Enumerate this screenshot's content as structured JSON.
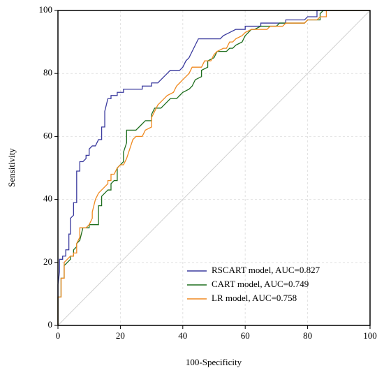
{
  "chart_data": {
    "type": "line",
    "x_label": "100-Specificity",
    "y_label": "Sensitivity",
    "xlim": [
      0,
      100
    ],
    "ylim": [
      0,
      100
    ],
    "xticks": [
      0,
      20,
      40,
      60,
      80,
      100
    ],
    "yticks": [
      0,
      20,
      40,
      60,
      80,
      100
    ],
    "grid": true,
    "legend": "lower right",
    "series": [
      {
        "name": "RSCART model, AUC=0.827",
        "color": "#3a3a9e",
        "x": [
          0,
          0,
          0.5,
          0.5,
          1.5,
          1.5,
          2.5,
          2.5,
          3.5,
          3.5,
          4,
          4,
          5,
          5,
          6,
          6,
          7,
          7,
          8,
          9,
          9,
          10,
          10,
          11,
          12,
          13,
          14,
          14,
          15,
          15,
          16,
          17,
          17,
          19,
          19,
          21,
          21,
          27,
          27,
          30,
          30,
          32,
          33,
          35,
          36,
          39,
          40,
          41,
          42,
          43,
          44,
          45,
          52,
          53,
          55,
          57,
          60,
          60,
          65,
          65,
          73,
          73,
          79,
          80,
          83,
          83,
          100
        ],
        "values": [
          0,
          13,
          17,
          21,
          21,
          22,
          22,
          24,
          24,
          29,
          29,
          34,
          35,
          39,
          39,
          49,
          49,
          52,
          52,
          53,
          54,
          54,
          56,
          57,
          57,
          59,
          59,
          63,
          63,
          68,
          72,
          72,
          73,
          73,
          74,
          74,
          75,
          75,
          76,
          76,
          77,
          77,
          78,
          80,
          81,
          81,
          82,
          84,
          85,
          87,
          89,
          91,
          91,
          92,
          93,
          94,
          94,
          95,
          95,
          96,
          96,
          97,
          97,
          98,
          98,
          100,
          100
        ]
      },
      {
        "name": "CART model, AUC=0.749",
        "color": "#1e6e1e",
        "x": [
          0,
          0,
          1,
          1,
          2,
          2,
          3,
          4,
          4,
          5,
          5,
          6,
          6,
          7,
          8,
          10,
          10,
          13,
          13,
          14,
          14,
          15,
          16,
          17,
          17,
          18,
          19,
          19,
          20,
          21,
          21,
          22,
          22,
          24,
          25,
          26,
          27,
          28,
          30,
          30,
          31,
          33,
          34,
          35,
          36,
          38,
          39,
          40,
          42,
          43,
          44,
          46,
          46,
          48,
          48,
          50,
          51,
          54,
          55,
          56,
          57,
          59,
          60,
          61,
          62,
          63,
          65,
          70,
          71,
          79,
          80,
          84,
          84,
          85,
          100
        ],
        "values": [
          0,
          9,
          9,
          15,
          15,
          19,
          20,
          21,
          22,
          22,
          24,
          25,
          26,
          27,
          31,
          31,
          32,
          32,
          38,
          38,
          41,
          42,
          43,
          43,
          45,
          46,
          46,
          50,
          51,
          52,
          55,
          58,
          62,
          62,
          62,
          63,
          64,
          65,
          65,
          67,
          69,
          69,
          70,
          71,
          72,
          72,
          73,
          74,
          75,
          76,
          78,
          79,
          81,
          82,
          84,
          85,
          87,
          87,
          88,
          88,
          89,
          90,
          92,
          93,
          94,
          94,
          95,
          95,
          96,
          96,
          97,
          97,
          99,
          100,
          100
        ]
      },
      {
        "name": "LR model, AUC=0.758",
        "color": "#f08a20",
        "x": [
          0,
          0,
          1,
          1,
          2,
          2,
          3,
          4,
          5,
          5,
          6,
          6,
          7,
          7,
          9,
          10,
          11,
          11,
          12,
          13,
          14,
          15,
          16,
          16,
          17,
          17,
          18,
          19,
          20,
          21,
          22,
          23,
          24,
          25,
          27,
          28,
          30,
          30,
          31,
          32,
          33,
          34,
          35,
          37,
          38,
          39,
          40,
          42,
          43,
          46,
          47,
          49,
          50,
          51,
          53,
          54,
          55,
          56,
          57,
          59,
          60,
          62,
          67,
          68,
          72,
          73,
          79,
          80,
          83,
          84,
          86,
          86,
          100
        ],
        "values": [
          0,
          9,
          9,
          15,
          15,
          20,
          21,
          22,
          22,
          23,
          23,
          26,
          28,
          31,
          31,
          32,
          34,
          36,
          40,
          42,
          43,
          44,
          45,
          46,
          46,
          48,
          48,
          50,
          51,
          51,
          53,
          56,
          59,
          60,
          60,
          62,
          63,
          66,
          68,
          70,
          71,
          72,
          73,
          74,
          76,
          77,
          78,
          80,
          82,
          82,
          84,
          84,
          86,
          87,
          88,
          88,
          90,
          90,
          91,
          92,
          93,
          94,
          94,
          95,
          95,
          96,
          96,
          97,
          97,
          98,
          98,
          100,
          100
        ]
      }
    ]
  }
}
